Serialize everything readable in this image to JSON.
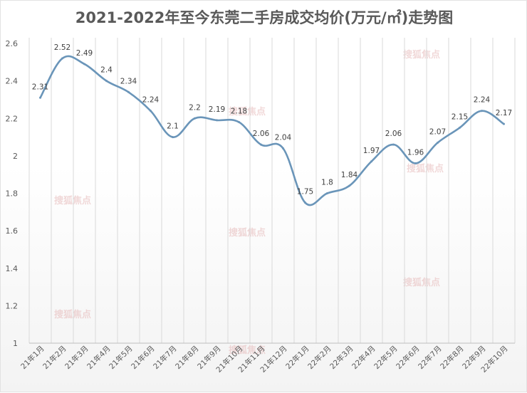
{
  "title": "2021-2022年至今东莞二手房成交均价(万元/㎡)走势图",
  "watermark": "搜狐焦点",
  "colors": {
    "line": "#6a95b9",
    "grid": "#d9d9d9",
    "label": "#404040",
    "title": "#595959"
  },
  "chart_data": {
    "type": "line",
    "title": "2021-2022年至今东莞二手房成交均价(万元/㎡)走势图",
    "xlabel": "",
    "ylabel": "",
    "ylim": [
      1,
      2.6
    ],
    "yticks": [
      "1",
      "1.2",
      "1.4",
      "1.6",
      "1.8",
      "2",
      "2.2",
      "2.4",
      "2.6"
    ],
    "categories": [
      "21年1月",
      "21年2月",
      "21年3月",
      "21年4月",
      "21年5月",
      "21年6月",
      "21年7月",
      "21年8月",
      "21年9月",
      "21年10月",
      "21年11月",
      "21年12月",
      "22年1月",
      "22年2月",
      "22年3月",
      "22年4月",
      "22年5月",
      "22年6月",
      "22年7月",
      "22年8月",
      "22年9月",
      "22年10月"
    ],
    "values": [
      2.31,
      2.52,
      2.49,
      2.4,
      2.34,
      2.24,
      2.1,
      2.2,
      2.19,
      2.18,
      2.06,
      2.04,
      1.75,
      1.8,
      1.84,
      1.97,
      2.06,
      1.96,
      2.07,
      2.15,
      2.24,
      2.17
    ],
    "grid": "vertical",
    "legend": "none"
  }
}
